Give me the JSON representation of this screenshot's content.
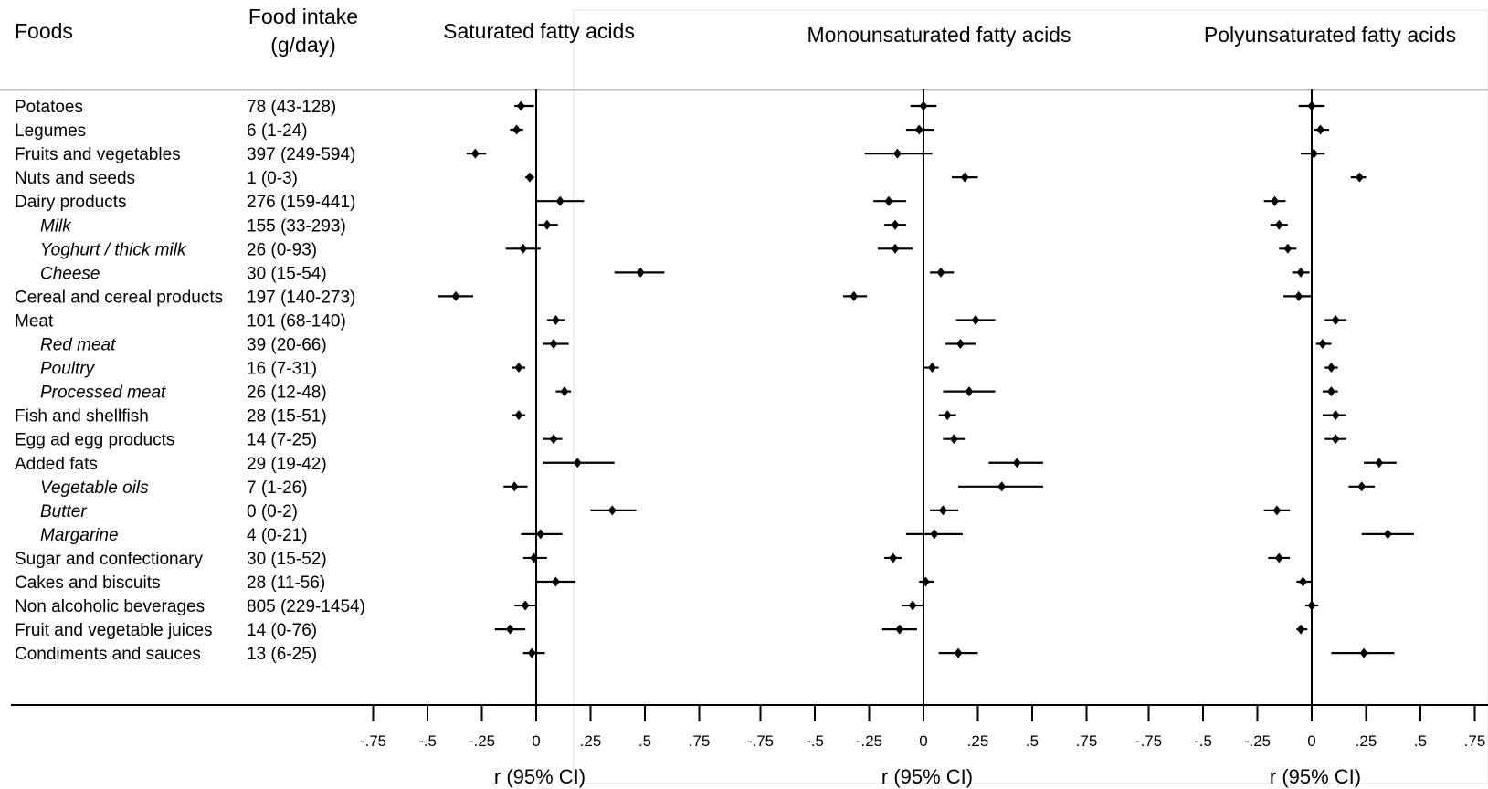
{
  "headers": {
    "foods": "Foods",
    "intake_line1": "Food intake",
    "intake_line2": "(g/day)"
  },
  "rows": [
    {
      "food": "Potatoes",
      "intake": "78 (43-128)",
      "sub": false
    },
    {
      "food": "Legumes",
      "intake": "6 (1-24)",
      "sub": false
    },
    {
      "food": "Fruits and vegetables",
      "intake": "397 (249-594)",
      "sub": false
    },
    {
      "food": "Nuts and seeds",
      "intake": "1 (0-3)",
      "sub": false
    },
    {
      "food": "Dairy products",
      "intake": "276 (159-441)",
      "sub": false
    },
    {
      "food": "Milk",
      "intake": "155 (33-293)",
      "sub": true
    },
    {
      "food": "Yoghurt / thick milk",
      "intake": "26 (0-93)",
      "sub": true
    },
    {
      "food": "Cheese",
      "intake": "30 (15-54)",
      "sub": true
    },
    {
      "food": "Cereal and cereal products",
      "intake": "197 (140-273)",
      "sub": false
    },
    {
      "food": "Meat",
      "intake": "101 (68-140)",
      "sub": false
    },
    {
      "food": "Red meat",
      "intake": "39 (20-66)",
      "sub": true
    },
    {
      "food": "Poultry",
      "intake": "16 (7-31)",
      "sub": true
    },
    {
      "food": "Processed meat",
      "intake": "26 (12-48)",
      "sub": true
    },
    {
      "food": "Fish and shellfish",
      "intake": "28 (15-51)",
      "sub": false
    },
    {
      "food": "Egg ad egg products",
      "intake": "14 (7-25)",
      "sub": false
    },
    {
      "food": "Added fats",
      "intake": "29 (19-42)",
      "sub": false
    },
    {
      "food": "Vegetable oils",
      "intake": "7 (1-26)",
      "sub": true
    },
    {
      "food": "Butter",
      "intake": "0 (0-2)",
      "sub": true
    },
    {
      "food": "Margarine",
      "intake": "4 (0-21)",
      "sub": true
    },
    {
      "food": "Sugar and confectionary",
      "intake": "30 (15-52)",
      "sub": false
    },
    {
      "food": "Cakes and biscuits",
      "intake": "28 (11-56)",
      "sub": false
    },
    {
      "food": "Non alcoholic beverages",
      "intake": "805 (229-1454)",
      "sub": false
    },
    {
      "food": "Fruit and vegetable juices",
      "intake": "14 (0-76)",
      "sub": false
    },
    {
      "food": "Condiments and sauces",
      "intake": "13 (6-25)",
      "sub": false
    }
  ],
  "chart_data": {
    "type": "scatter",
    "tick_values": [
      -0.75,
      -0.5,
      -0.25,
      0,
      0.25,
      0.5,
      0.75
    ],
    "tick_labels": [
      "-.75",
      "-.5",
      "-.25",
      "0",
      ".25",
      ".5",
      ".75"
    ],
    "xlim": [
      -0.75,
      0.75
    ],
    "grid": false,
    "panels": [
      {
        "title": "Saturated fatty acids",
        "xlabel": "r (95% CI)",
        "points": [
          {
            "r": -0.07,
            "lo": -0.1,
            "hi": -0.01
          },
          {
            "r": -0.09,
            "lo": -0.12,
            "hi": -0.06
          },
          {
            "r": -0.28,
            "lo": -0.32,
            "hi": -0.23
          },
          {
            "r": -0.03,
            "lo": -0.05,
            "hi": -0.01
          },
          {
            "r": 0.11,
            "lo": 0.0,
            "hi": 0.22
          },
          {
            "r": 0.05,
            "lo": 0.01,
            "hi": 0.1
          },
          {
            "r": -0.06,
            "lo": -0.14,
            "hi": 0.02
          },
          {
            "r": 0.48,
            "lo": 0.36,
            "hi": 0.59
          },
          {
            "r": -0.37,
            "lo": -0.45,
            "hi": -0.29
          },
          {
            "r": 0.09,
            "lo": 0.05,
            "hi": 0.13
          },
          {
            "r": 0.08,
            "lo": 0.03,
            "hi": 0.15
          },
          {
            "r": -0.08,
            "lo": -0.11,
            "hi": -0.05
          },
          {
            "r": 0.13,
            "lo": 0.09,
            "hi": 0.16
          },
          {
            "r": -0.08,
            "lo": -0.11,
            "hi": -0.05
          },
          {
            "r": 0.08,
            "lo": 0.03,
            "hi": 0.12
          },
          {
            "r": 0.19,
            "lo": 0.03,
            "hi": 0.36
          },
          {
            "r": -0.1,
            "lo": -0.15,
            "hi": -0.04
          },
          {
            "r": 0.35,
            "lo": 0.25,
            "hi": 0.46
          },
          {
            "r": 0.02,
            "lo": -0.07,
            "hi": 0.12
          },
          {
            "r": -0.01,
            "lo": -0.06,
            "hi": 0.05
          },
          {
            "r": 0.09,
            "lo": 0.0,
            "hi": 0.18
          },
          {
            "r": -0.05,
            "lo": -0.1,
            "hi": 0.0
          },
          {
            "r": -0.12,
            "lo": -0.19,
            "hi": -0.05
          },
          {
            "r": -0.02,
            "lo": -0.06,
            "hi": 0.04
          }
        ]
      },
      {
        "title": "Monounsaturated fatty acids",
        "xlabel": "r (95% CI)",
        "points": [
          {
            "r": 0.0,
            "lo": -0.06,
            "hi": 0.06
          },
          {
            "r": -0.02,
            "lo": -0.08,
            "hi": 0.05
          },
          {
            "r": -0.12,
            "lo": -0.27,
            "hi": 0.04
          },
          {
            "r": 0.19,
            "lo": 0.13,
            "hi": 0.25
          },
          {
            "r": -0.16,
            "lo": -0.23,
            "hi": -0.08
          },
          {
            "r": -0.13,
            "lo": -0.18,
            "hi": -0.08
          },
          {
            "r": -0.13,
            "lo": -0.21,
            "hi": -0.05
          },
          {
            "r": 0.08,
            "lo": 0.03,
            "hi": 0.14
          },
          {
            "r": -0.32,
            "lo": -0.37,
            "hi": -0.26
          },
          {
            "r": 0.24,
            "lo": 0.15,
            "hi": 0.33
          },
          {
            "r": 0.17,
            "lo": 0.1,
            "hi": 0.24
          },
          {
            "r": 0.04,
            "lo": 0.0,
            "hi": 0.07
          },
          {
            "r": 0.21,
            "lo": 0.09,
            "hi": 0.33
          },
          {
            "r": 0.11,
            "lo": 0.07,
            "hi": 0.15
          },
          {
            "r": 0.14,
            "lo": 0.09,
            "hi": 0.19
          },
          {
            "r": 0.43,
            "lo": 0.3,
            "hi": 0.55
          },
          {
            "r": 0.36,
            "lo": 0.16,
            "hi": 0.55
          },
          {
            "r": 0.09,
            "lo": 0.03,
            "hi": 0.16
          },
          {
            "r": 0.05,
            "lo": -0.08,
            "hi": 0.18
          },
          {
            "r": -0.14,
            "lo": -0.18,
            "hi": -0.1
          },
          {
            "r": 0.01,
            "lo": -0.02,
            "hi": 0.05
          },
          {
            "r": -0.05,
            "lo": -0.1,
            "hi": 0.0
          },
          {
            "r": -0.11,
            "lo": -0.19,
            "hi": -0.03
          },
          {
            "r": 0.16,
            "lo": 0.07,
            "hi": 0.25
          }
        ]
      },
      {
        "title": "Polyunsaturated fatty acids",
        "xlabel": "r (95% CI)",
        "points": [
          {
            "r": 0.0,
            "lo": -0.06,
            "hi": 0.06
          },
          {
            "r": 0.04,
            "lo": 0.01,
            "hi": 0.08
          },
          {
            "r": 0.01,
            "lo": -0.05,
            "hi": 0.06
          },
          {
            "r": 0.22,
            "lo": 0.18,
            "hi": 0.25
          },
          {
            "r": -0.17,
            "lo": -0.22,
            "hi": -0.12
          },
          {
            "r": -0.15,
            "lo": -0.19,
            "hi": -0.11
          },
          {
            "r": -0.11,
            "lo": -0.15,
            "hi": -0.07
          },
          {
            "r": -0.05,
            "lo": -0.09,
            "hi": -0.01
          },
          {
            "r": -0.06,
            "lo": -0.13,
            "hi": 0.0
          },
          {
            "r": 0.11,
            "lo": 0.06,
            "hi": 0.16
          },
          {
            "r": 0.05,
            "lo": 0.02,
            "hi": 0.09
          },
          {
            "r": 0.09,
            "lo": 0.06,
            "hi": 0.12
          },
          {
            "r": 0.09,
            "lo": 0.05,
            "hi": 0.12
          },
          {
            "r": 0.11,
            "lo": 0.05,
            "hi": 0.16
          },
          {
            "r": 0.11,
            "lo": 0.06,
            "hi": 0.16
          },
          {
            "r": 0.31,
            "lo": 0.24,
            "hi": 0.39
          },
          {
            "r": 0.23,
            "lo": 0.17,
            "hi": 0.29
          },
          {
            "r": -0.16,
            "lo": -0.22,
            "hi": -0.1
          },
          {
            "r": 0.35,
            "lo": 0.23,
            "hi": 0.47
          },
          {
            "r": -0.15,
            "lo": -0.2,
            "hi": -0.1
          },
          {
            "r": -0.04,
            "lo": -0.07,
            "hi": 0.0
          },
          {
            "r": 0.0,
            "lo": -0.03,
            "hi": 0.03
          },
          {
            "r": -0.05,
            "lo": -0.07,
            "hi": -0.02
          },
          {
            "r": 0.24,
            "lo": 0.09,
            "hi": 0.38
          }
        ]
      }
    ]
  }
}
